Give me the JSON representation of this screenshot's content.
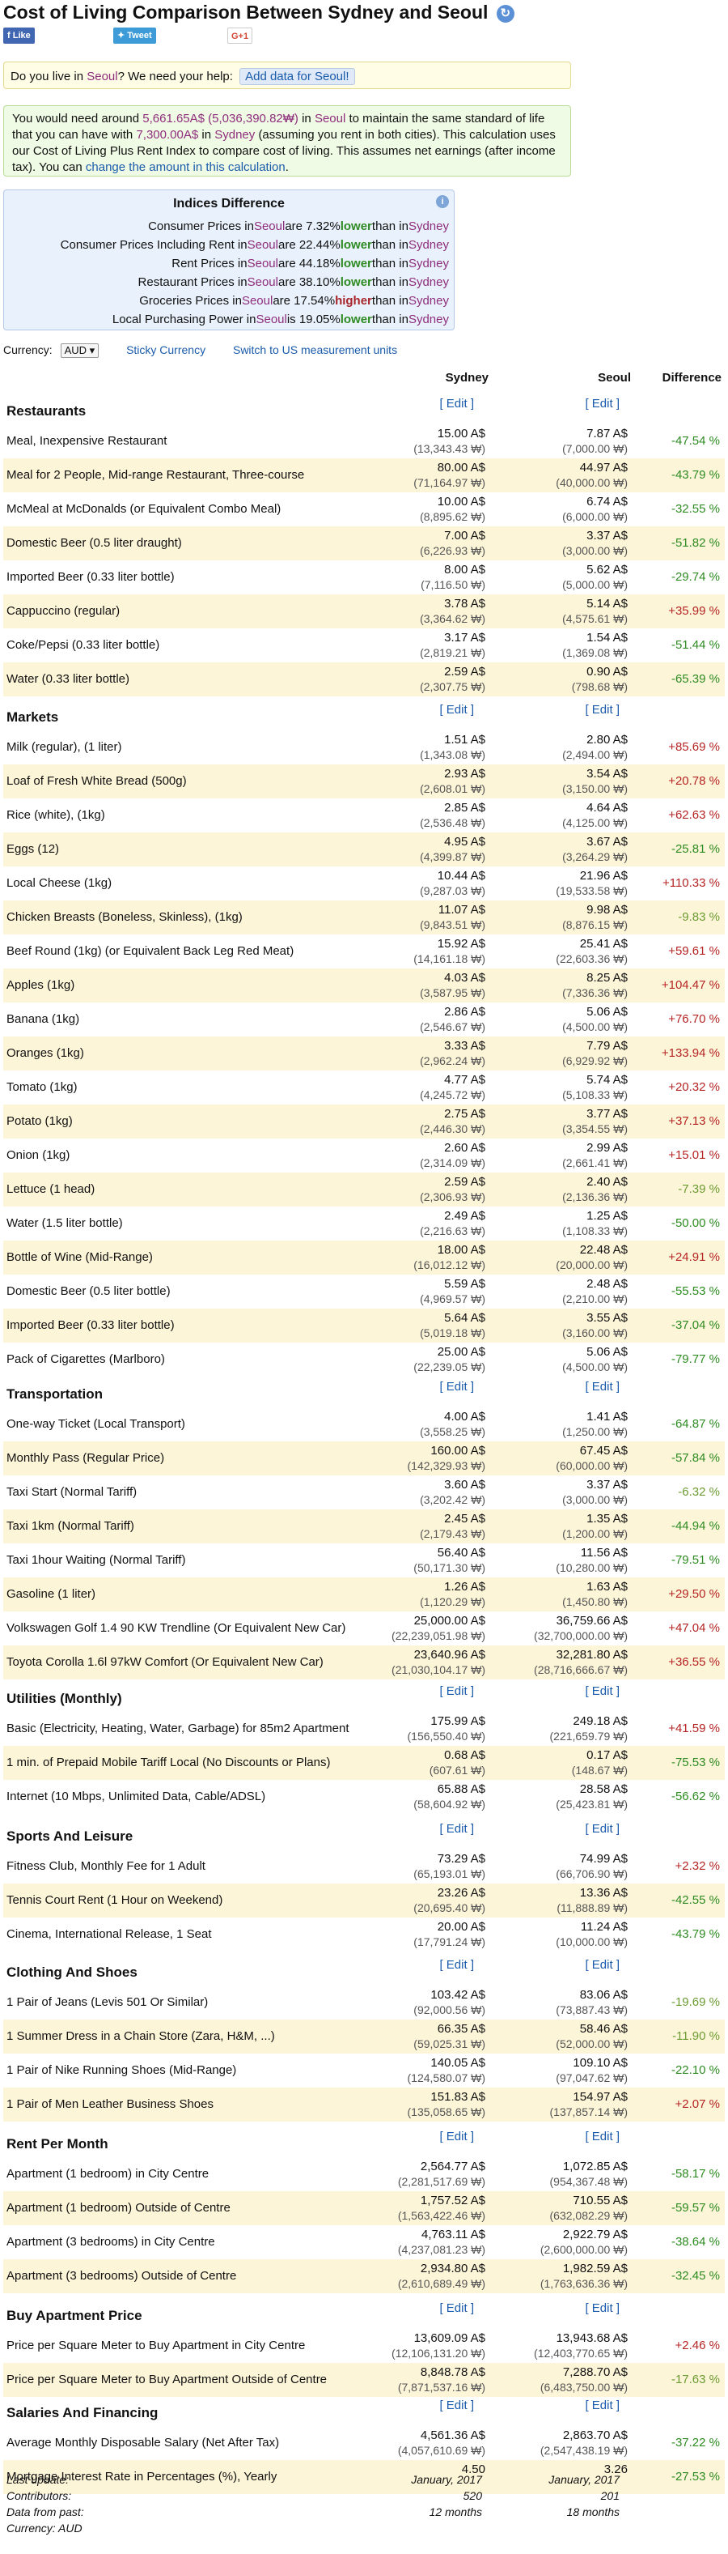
{
  "page": {
    "title_prefix": "Cost of Living Comparison Between",
    "city1": "Sydney",
    "and": "and",
    "city2": "Seoul"
  },
  "social": {
    "like": "Like",
    "tweet": "Tweet",
    "gplus": "G+1"
  },
  "help": {
    "text_a": "Do you live in",
    "city": "Seoul",
    "text_b": "? We need your help:",
    "button": "Add data for Seoul!"
  },
  "info": {
    "p1": "You would need around",
    "amount": "5,661.65A$ (5,036,390.82₩)",
    "p2": "in",
    "city2": "Seoul",
    "p3": "to maintain the same standard of life that you can have with",
    "amount1": "7,300.00A$",
    "p4": "in",
    "city1": "Sydney",
    "p5": "(assuming you rent in both cities). This calculation uses our Cost of Living Plus Rent Index to compare cost of living. This assumes net earnings (after income tax). You can",
    "link": "change the amount in this calculation",
    "p6": "."
  },
  "indices": {
    "title": "Indices Difference",
    "info_icon": "i",
    "lines": [
      {
        "pre": "Consumer Prices in",
        "city": "Seoul",
        "mid": "are 7.32%",
        "dir": "lower",
        "dircls": "lower",
        "post": "than in",
        "city1": "Sydney"
      },
      {
        "pre": "Consumer Prices Including Rent in",
        "city": "Seoul",
        "mid": "are 22.44%",
        "dir": "lower",
        "dircls": "lower",
        "post": "than in",
        "city1": "Sydney"
      },
      {
        "pre": "Rent Prices in",
        "city": "Seoul",
        "mid": "are 44.18%",
        "dir": "lower",
        "dircls": "lower",
        "post": "than in",
        "city1": "Sydney"
      },
      {
        "pre": "Restaurant Prices in",
        "city": "Seoul",
        "mid": "are 38.10%",
        "dir": "lower",
        "dircls": "lower",
        "post": "than in",
        "city1": "Sydney"
      },
      {
        "pre": "Groceries Prices in",
        "city": "Seoul",
        "mid": "are 17.54%",
        "dir": "higher",
        "dircls": "higher",
        "post": "than in",
        "city1": "Sydney"
      },
      {
        "pre": "Local Purchasing Power in",
        "city": "Seoul",
        "mid": "is 19.05%",
        "dir": "lower",
        "dircls": "lower",
        "post": "than in",
        "city1": "Sydney"
      }
    ]
  },
  "currency": {
    "label": "Currency:",
    "value": "AUD ▾",
    "sticky": "Sticky Currency",
    "switch": "Switch to US measurement units"
  },
  "columns": {
    "c1": "Sydney",
    "c2": "Seoul",
    "c3": "Difference"
  },
  "edit": "[ Edit ]",
  "sections": [
    {
      "title": "Restaurants",
      "rows": [
        {
          "label": "Meal, Inexpensive Restaurant",
          "a": "15.00 A$",
          "al": "(13,343.43 ₩)",
          "b": "7.87 A$",
          "bl": "(7,000.00 ₩)",
          "d": "-47.54 %",
          "dc": "neg"
        },
        {
          "label": "Meal for 2 People, Mid-range Restaurant, Three-course",
          "a": "80.00 A$",
          "al": "(71,164.97 ₩)",
          "b": "44.97 A$",
          "bl": "(40,000.00 ₩)",
          "d": "-43.79 %",
          "dc": "neg"
        },
        {
          "label": "McMeal at McDonalds (or Equivalent Combo Meal)",
          "a": "10.00 A$",
          "al": "(8,895.62 ₩)",
          "b": "6.74 A$",
          "bl": "(6,000.00 ₩)",
          "d": "-32.55 %",
          "dc": "neg"
        },
        {
          "label": "Domestic Beer (0.5 liter draught)",
          "a": "7.00 A$",
          "al": "(6,226.93 ₩)",
          "b": "3.37 A$",
          "bl": "(3,000.00 ₩)",
          "d": "-51.82 %",
          "dc": "neg"
        },
        {
          "label": "Imported Beer (0.33 liter bottle)",
          "a": "8.00 A$",
          "al": "(7,116.50 ₩)",
          "b": "5.62 A$",
          "bl": "(5,000.00 ₩)",
          "d": "-29.74 %",
          "dc": "neg"
        },
        {
          "label": "Cappuccino (regular)",
          "a": "3.78 A$",
          "al": "(3,364.62 ₩)",
          "b": "5.14 A$",
          "bl": "(4,575.61 ₩)",
          "d": "+35.99 %",
          "dc": "pos"
        },
        {
          "label": "Coke/Pepsi (0.33 liter bottle)",
          "a": "3.17 A$",
          "al": "(2,819.21 ₩)",
          "b": "1.54 A$",
          "bl": "(1,369.08 ₩)",
          "d": "-51.44 %",
          "dc": "neg"
        },
        {
          "label": "Water (0.33 liter bottle)",
          "a": "2.59 A$",
          "al": "(2,307.75 ₩)",
          "b": "0.90 A$",
          "bl": "(798.68 ₩)",
          "d": "-65.39 %",
          "dc": "neg"
        }
      ]
    },
    {
      "title": "Markets",
      "rows": [
        {
          "label": "Milk (regular), (1 liter)",
          "a": "1.51 A$",
          "al": "(1,343.08 ₩)",
          "b": "2.80 A$",
          "bl": "(2,494.00 ₩)",
          "d": "+85.69 %",
          "dc": "pos"
        },
        {
          "label": "Loaf of Fresh White Bread (500g)",
          "a": "2.93 A$",
          "al": "(2,608.01 ₩)",
          "b": "3.54 A$",
          "bl": "(3,150.00 ₩)",
          "d": "+20.78 %",
          "dc": "pos"
        },
        {
          "label": "Rice (white), (1kg)",
          "a": "2.85 A$",
          "al": "(2,536.48 ₩)",
          "b": "4.64 A$",
          "bl": "(4,125.00 ₩)",
          "d": "+62.63 %",
          "dc": "pos"
        },
        {
          "label": "Eggs (12)",
          "a": "4.95 A$",
          "al": "(4,399.87 ₩)",
          "b": "3.67 A$",
          "bl": "(3,264.29 ₩)",
          "d": "-25.81 %",
          "dc": "neg"
        },
        {
          "label": "Local Cheese (1kg)",
          "a": "10.44 A$",
          "al": "(9,287.03 ₩)",
          "b": "21.96 A$",
          "bl": "(19,533.58 ₩)",
          "d": "+110.33 %",
          "dc": "pos"
        },
        {
          "label": "Chicken Breasts (Boneless, Skinless), (1kg)",
          "a": "11.07 A$",
          "al": "(9,843.51 ₩)",
          "b": "9.98 A$",
          "bl": "(8,876.15 ₩)",
          "d": "-9.83 %",
          "dc": "ltgreen"
        },
        {
          "label": "Beef Round (1kg) (or Equivalent Back Leg Red Meat)",
          "a": "15.92 A$",
          "al": "(14,161.18 ₩)",
          "b": "25.41 A$",
          "bl": "(22,603.36 ₩)",
          "d": "+59.61 %",
          "dc": "pos"
        },
        {
          "label": "Apples (1kg)",
          "a": "4.03 A$",
          "al": "(3,587.95 ₩)",
          "b": "8.25 A$",
          "bl": "(7,336.36 ₩)",
          "d": "+104.47 %",
          "dc": "pos"
        },
        {
          "label": "Banana (1kg)",
          "a": "2.86 A$",
          "al": "(2,546.67 ₩)",
          "b": "5.06 A$",
          "bl": "(4,500.00 ₩)",
          "d": "+76.70 %",
          "dc": "pos"
        },
        {
          "label": "Oranges (1kg)",
          "a": "3.33 A$",
          "al": "(2,962.24 ₩)",
          "b": "7.79 A$",
          "bl": "(6,929.92 ₩)",
          "d": "+133.94 %",
          "dc": "pos"
        },
        {
          "label": "Tomato (1kg)",
          "a": "4.77 A$",
          "al": "(4,245.72 ₩)",
          "b": "5.74 A$",
          "bl": "(5,108.33 ₩)",
          "d": "+20.32 %",
          "dc": "pos"
        },
        {
          "label": "Potato (1kg)",
          "a": "2.75 A$",
          "al": "(2,446.30 ₩)",
          "b": "3.77 A$",
          "bl": "(3,354.55 ₩)",
          "d": "+37.13 %",
          "dc": "pos"
        },
        {
          "label": "Onion (1kg)",
          "a": "2.60 A$",
          "al": "(2,314.09 ₩)",
          "b": "2.99 A$",
          "bl": "(2,661.41 ₩)",
          "d": "+15.01 %",
          "dc": "pos"
        },
        {
          "label": "Lettuce (1 head)",
          "a": "2.59 A$",
          "al": "(2,306.93 ₩)",
          "b": "2.40 A$",
          "bl": "(2,136.36 ₩)",
          "d": "-7.39 %",
          "dc": "ltgreen"
        },
        {
          "label": "Water (1.5 liter bottle)",
          "a": "2.49 A$",
          "al": "(2,216.63 ₩)",
          "b": "1.25 A$",
          "bl": "(1,108.33 ₩)",
          "d": "-50.00 %",
          "dc": "neg"
        },
        {
          "label": "Bottle of Wine (Mid-Range)",
          "a": "18.00 A$",
          "al": "(16,012.12 ₩)",
          "b": "22.48 A$",
          "bl": "(20,000.00 ₩)",
          "d": "+24.91 %",
          "dc": "pos"
        },
        {
          "label": "Domestic Beer (0.5 liter bottle)",
          "a": "5.59 A$",
          "al": "(4,969.57 ₩)",
          "b": "2.48 A$",
          "bl": "(2,210.00 ₩)",
          "d": "-55.53 %",
          "dc": "neg"
        },
        {
          "label": "Imported Beer (0.33 liter bottle)",
          "a": "5.64 A$",
          "al": "(5,019.18 ₩)",
          "b": "3.55 A$",
          "bl": "(3,160.00 ₩)",
          "d": "-37.04 %",
          "dc": "neg"
        },
        {
          "label": "Pack of Cigarettes (Marlboro)",
          "a": "25.00 A$",
          "al": "(22,239.05 ₩)",
          "b": "5.06 A$",
          "bl": "(4,500.00 ₩)",
          "d": "-79.77 %",
          "dc": "neg"
        }
      ]
    },
    {
      "title": "Transportation",
      "rows": [
        {
          "label": "One-way Ticket (Local Transport)",
          "a": "4.00 A$",
          "al": "(3,558.25 ₩)",
          "b": "1.41 A$",
          "bl": "(1,250.00 ₩)",
          "d": "-64.87 %",
          "dc": "neg"
        },
        {
          "label": "Monthly Pass (Regular Price)",
          "a": "160.00 A$",
          "al": "(142,329.93 ₩)",
          "b": "67.45 A$",
          "bl": "(60,000.00 ₩)",
          "d": "-57.84 %",
          "dc": "neg"
        },
        {
          "label": "Taxi Start (Normal Tariff)",
          "a": "3.60 A$",
          "al": "(3,202.42 ₩)",
          "b": "3.37 A$",
          "bl": "(3,000.00 ₩)",
          "d": "-6.32 %",
          "dc": "ltgreen"
        },
        {
          "label": "Taxi 1km (Normal Tariff)",
          "a": "2.45 A$",
          "al": "(2,179.43 ₩)",
          "b": "1.35 A$",
          "bl": "(1,200.00 ₩)",
          "d": "-44.94 %",
          "dc": "neg"
        },
        {
          "label": "Taxi 1hour Waiting (Normal Tariff)",
          "a": "56.40 A$",
          "al": "(50,171.30 ₩)",
          "b": "11.56 A$",
          "bl": "(10,280.00 ₩)",
          "d": "-79.51 %",
          "dc": "neg"
        },
        {
          "label": "Gasoline (1 liter)",
          "a": "1.26 A$",
          "al": "(1,120.29 ₩)",
          "b": "1.63 A$",
          "bl": "(1,450.80 ₩)",
          "d": "+29.50 %",
          "dc": "pos"
        },
        {
          "label": "Volkswagen Golf 1.4 90 KW Trendline (Or Equivalent New Car)",
          "a": "25,000.00 A$",
          "al": "(22,239,051.98 ₩)",
          "b": "36,759.66 A$",
          "bl": "(32,700,000.00 ₩)",
          "d": "+47.04 %",
          "dc": "pos"
        },
        {
          "label": "Toyota Corolla 1.6l 97kW Comfort (Or Equivalent New Car)",
          "a": "23,640.96 A$",
          "al": "(21,030,104.17 ₩)",
          "b": "32,281.80 A$",
          "bl": "(28,716,666.67 ₩)",
          "d": "+36.55 %",
          "dc": "pos"
        }
      ]
    },
    {
      "title": "Utilities (Monthly)",
      "rows": [
        {
          "label": "Basic (Electricity, Heating, Water, Garbage) for 85m2 Apartment",
          "a": "175.99 A$",
          "al": "(156,550.40 ₩)",
          "b": "249.18 A$",
          "bl": "(221,659.79 ₩)",
          "d": "+41.59 %",
          "dc": "pos"
        },
        {
          "label": "1 min. of Prepaid Mobile Tariff Local (No Discounts or Plans)",
          "a": "0.68 A$",
          "al": "(607.61 ₩)",
          "b": "0.17 A$",
          "bl": "(148.67 ₩)",
          "d": "-75.53 %",
          "dc": "neg"
        },
        {
          "label": "Internet (10 Mbps, Unlimited Data, Cable/ADSL)",
          "a": "65.88 A$",
          "al": "(58,604.92 ₩)",
          "b": "28.58 A$",
          "bl": "(25,423.81 ₩)",
          "d": "-56.62 %",
          "dc": "neg"
        }
      ]
    },
    {
      "title": "Sports And Leisure",
      "rows": [
        {
          "label": "Fitness Club, Monthly Fee for 1 Adult",
          "a": "73.29 A$",
          "al": "(65,193.01 ₩)",
          "b": "74.99 A$",
          "bl": "(66,706.90 ₩)",
          "d": "+2.32 %",
          "dc": "pos"
        },
        {
          "label": "Tennis Court Rent (1 Hour on Weekend)",
          "a": "23.26 A$",
          "al": "(20,695.40 ₩)",
          "b": "13.36 A$",
          "bl": "(11,888.89 ₩)",
          "d": "-42.55 %",
          "dc": "neg"
        },
        {
          "label": "Cinema, International Release, 1 Seat",
          "a": "20.00 A$",
          "al": "(17,791.24 ₩)",
          "b": "11.24 A$",
          "bl": "(10,000.00 ₩)",
          "d": "-43.79 %",
          "dc": "neg"
        }
      ]
    },
    {
      "title": "Clothing And Shoes",
      "rows": [
        {
          "label": "1 Pair of Jeans (Levis 501 Or Similar)",
          "a": "103.42 A$",
          "al": "(92,000.56 ₩)",
          "b": "83.06 A$",
          "bl": "(73,887.43 ₩)",
          "d": "-19.69 %",
          "dc": "ltgreen"
        },
        {
          "label": "1 Summer Dress in a Chain Store (Zara, H&M, ...)",
          "a": "66.35 A$",
          "al": "(59,025.31 ₩)",
          "b": "58.46 A$",
          "bl": "(52,000.00 ₩)",
          "d": "-11.90 %",
          "dc": "ltgreen"
        },
        {
          "label": "1 Pair of Nike Running Shoes (Mid-Range)",
          "a": "140.05 A$",
          "al": "(124,580.07 ₩)",
          "b": "109.10 A$",
          "bl": "(97,047.62 ₩)",
          "d": "-22.10 %",
          "dc": "neg"
        },
        {
          "label": "1 Pair of Men Leather Business Shoes",
          "a": "151.83 A$",
          "al": "(135,058.65 ₩)",
          "b": "154.97 A$",
          "bl": "(137,857.14 ₩)",
          "d": "+2.07 %",
          "dc": "pos"
        }
      ]
    },
    {
      "title": "Rent Per Month",
      "rows": [
        {
          "label": "Apartment (1 bedroom) in City Centre",
          "a": "2,564.77 A$",
          "al": "(2,281,517.69 ₩)",
          "b": "1,072.85 A$",
          "bl": "(954,367.48 ₩)",
          "d": "-58.17 %",
          "dc": "neg"
        },
        {
          "label": "Apartment (1 bedroom) Outside of Centre",
          "a": "1,757.52 A$",
          "al": "(1,563,422.46 ₩)",
          "b": "710.55 A$",
          "bl": "(632,082.29 ₩)",
          "d": "-59.57 %",
          "dc": "neg"
        },
        {
          "label": "Apartment (3 bedrooms) in City Centre",
          "a": "4,763.11 A$",
          "al": "(4,237,081.23 ₩)",
          "b": "2,922.79 A$",
          "bl": "(2,600,000.00 ₩)",
          "d": "-38.64 %",
          "dc": "neg"
        },
        {
          "label": "Apartment (3 bedrooms) Outside of Centre",
          "a": "2,934.80 A$",
          "al": "(2,610,689.49 ₩)",
          "b": "1,982.59 A$",
          "bl": "(1,763,636.36 ₩)",
          "d": "-32.45 %",
          "dc": "neg"
        }
      ]
    },
    {
      "title": "Buy Apartment Price",
      "rows": [
        {
          "label": "Price per Square Meter to Buy Apartment in City Centre",
          "a": "13,609.09 A$",
          "al": "(12,106,131.20 ₩)",
          "b": "13,943.68 A$",
          "bl": "(12,403,770.65 ₩)",
          "d": "+2.46 %",
          "dc": "pos"
        },
        {
          "label": "Price per Square Meter to Buy Apartment Outside of Centre",
          "a": "8,848.78 A$",
          "al": "(7,871,537.16 ₩)",
          "b": "7,288.70 A$",
          "bl": "(6,483,750.00 ₩)",
          "d": "-17.63 %",
          "dc": "ltgreen"
        }
      ]
    },
    {
      "title": "Salaries And Financing",
      "rows": [
        {
          "label": "Average Monthly Disposable Salary (Net After Tax)",
          "a": "4,561.36 A$",
          "al": "(4,057,610.69 ₩)",
          "b": "2,863.70 A$",
          "bl": "(2,547,438.19 ₩)",
          "d": "-37.22 %",
          "dc": "neg"
        },
        {
          "label": "Mortgage Interest Rate in Percentages (%), Yearly",
          "a": "4.50",
          "al": "",
          "b": "3.26",
          "bl": "",
          "d": "-27.53 %",
          "dc": "neg"
        }
      ]
    }
  ],
  "footer": [
    {
      "label": "Last update:",
      "a": "January, 2017",
      "b": "January, 2017"
    },
    {
      "label": "Contributors:",
      "a": "520",
      "b": "201"
    },
    {
      "label": "Data from past:",
      "a": "12 months",
      "b": "18 months"
    },
    {
      "label": "Currency: AUD",
      "a": "",
      "b": ""
    }
  ]
}
